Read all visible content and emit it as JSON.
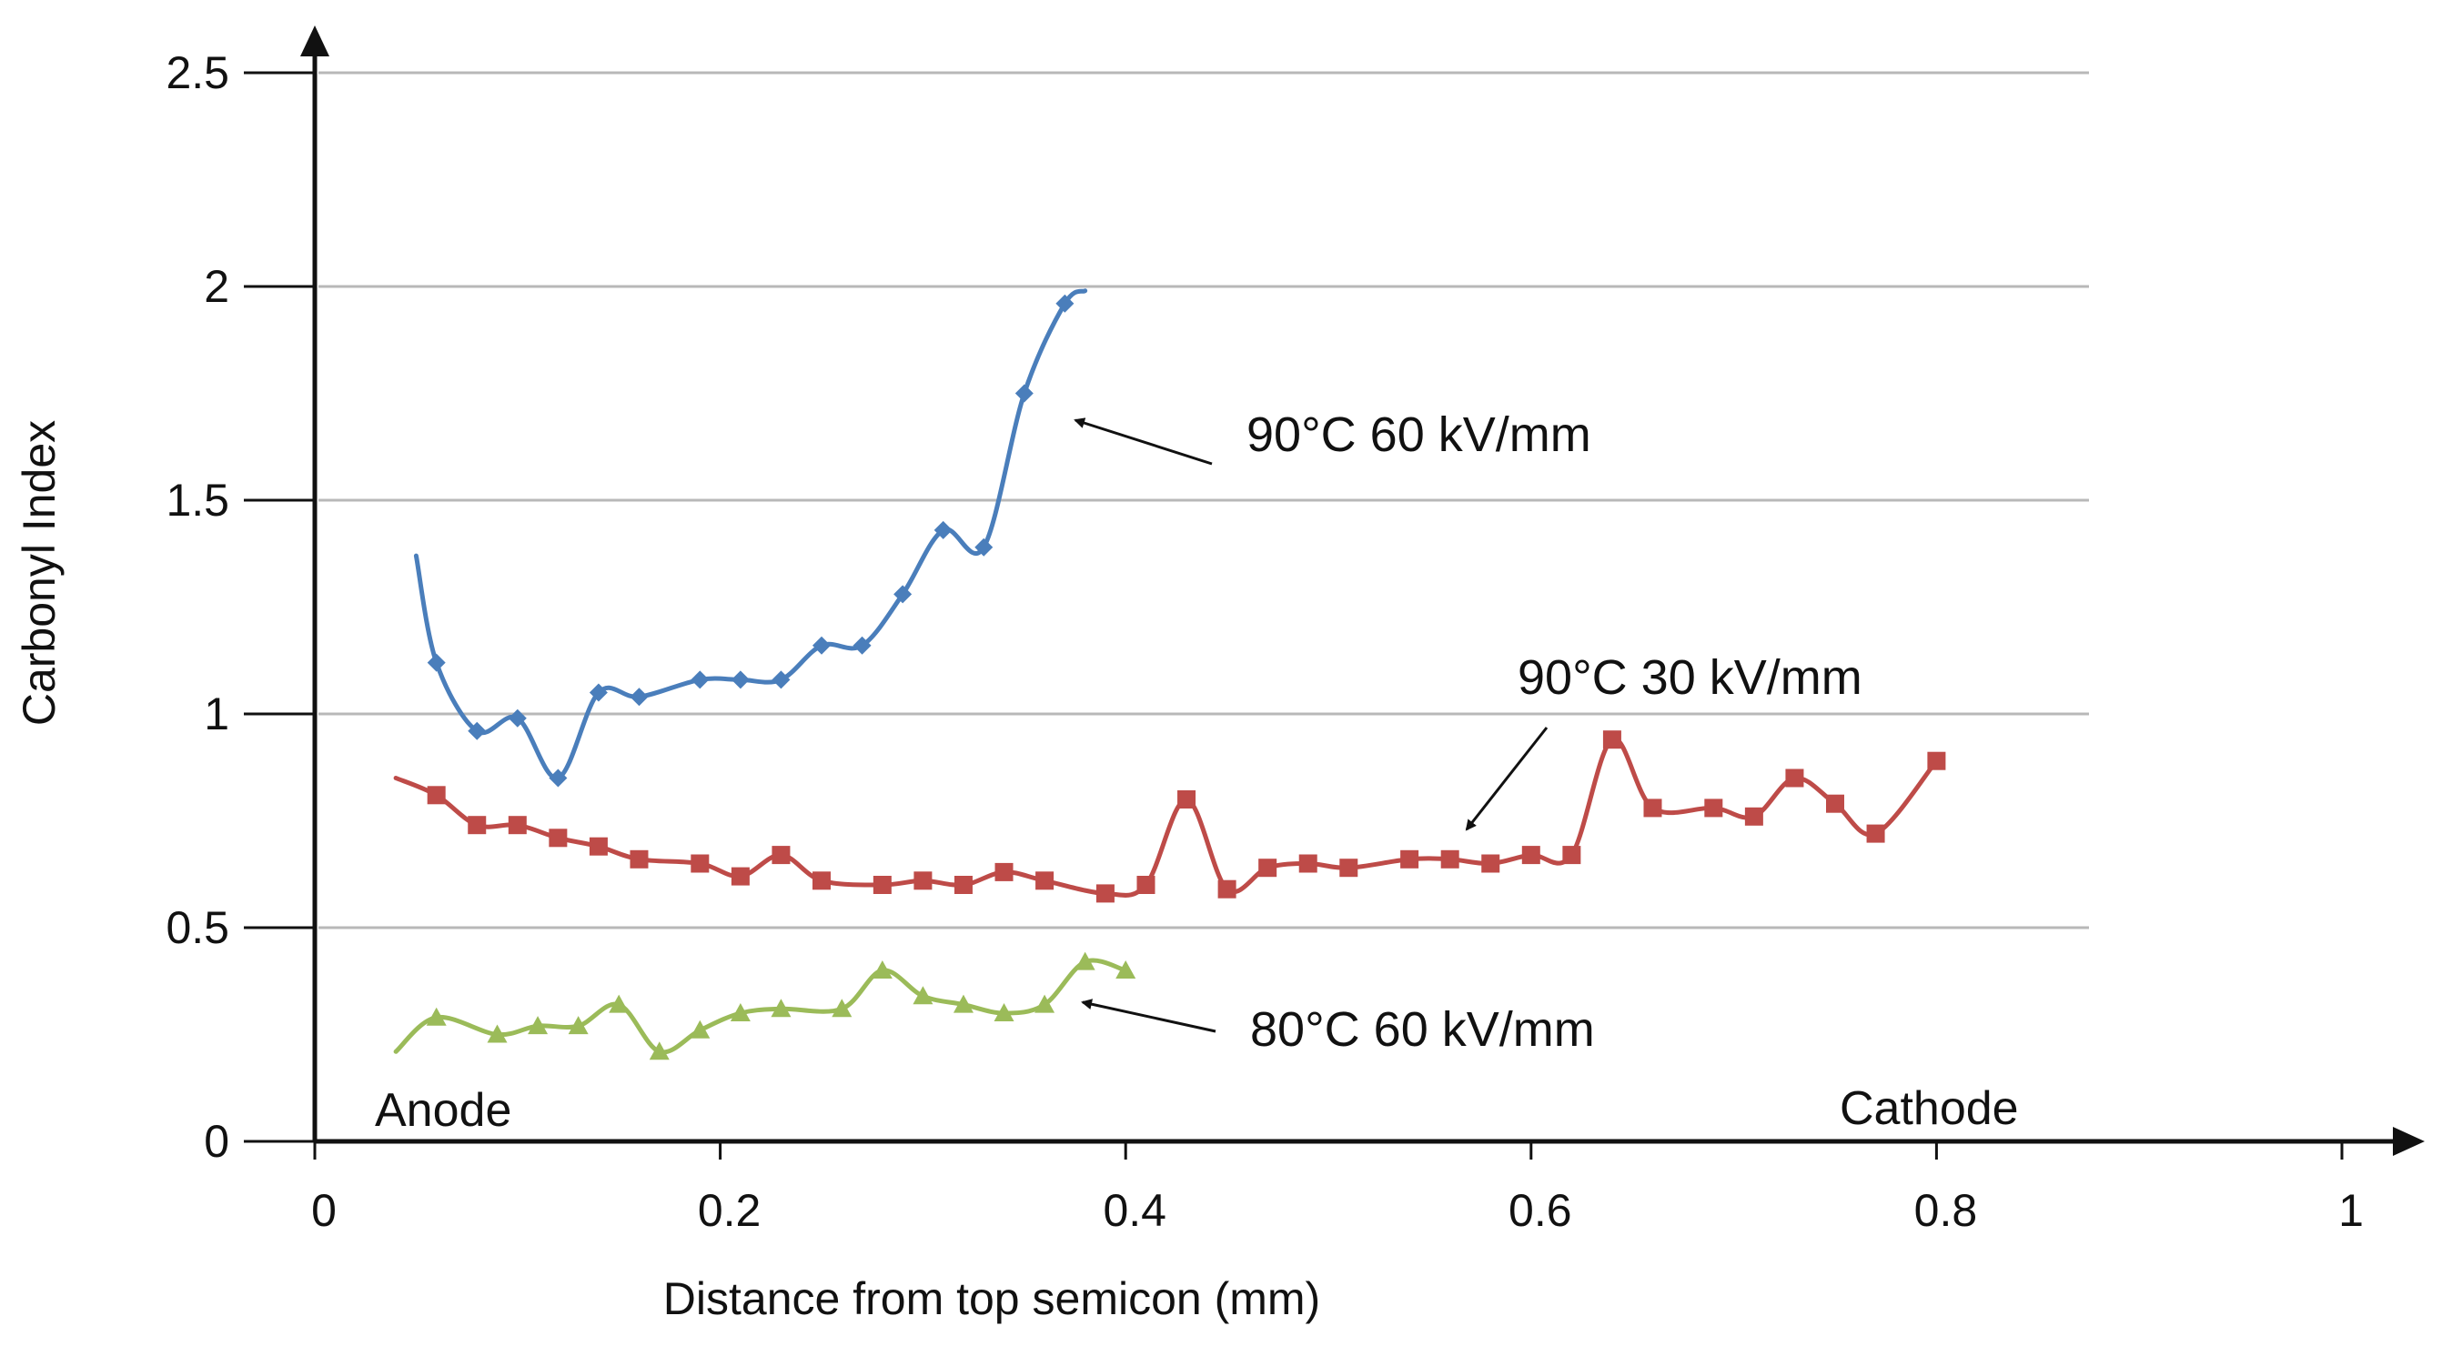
{
  "chart_data": {
    "type": "line",
    "title": "",
    "xlabel": "Distance from top semicon (mm)",
    "ylabel": "Carbonyl Index",
    "xlim": [
      0,
      1
    ],
    "ylim": [
      0,
      2.5
    ],
    "xticks": [
      0,
      0.2,
      0.4,
      0.6,
      0.8,
      1
    ],
    "xtick_labels": [
      "0",
      "0.2",
      "0.4",
      "0.6",
      "0.8",
      "1"
    ],
    "yticks": [
      0,
      0.5,
      1,
      1.5,
      2,
      2.5
    ],
    "ytick_labels": [
      "0",
      "0.5",
      "1",
      "1.5",
      "2",
      "2.5"
    ],
    "grid": true,
    "legend": "none",
    "series": [
      {
        "name": "90°C 60 kV/mm",
        "color": "#4a7ebb",
        "marker": "diamond",
        "x": [
          0.06,
          0.08,
          0.1,
          0.12,
          0.14,
          0.16,
          0.19,
          0.21,
          0.23,
          0.25,
          0.27,
          0.29,
          0.31,
          0.33,
          0.35,
          0.37
        ],
        "y": [
          1.12,
          0.96,
          0.99,
          0.85,
          1.05,
          1.04,
          1.08,
          1.08,
          1.08,
          1.16,
          1.16,
          1.28,
          1.43,
          1.39,
          1.75,
          1.96
        ],
        "curve_start": [
          0.05,
          1.37
        ],
        "curve_end": [
          0.38,
          1.99
        ]
      },
      {
        "name": "90°C 30 kV/mm",
        "color": "#be4b48",
        "marker": "square",
        "x": [
          0.06,
          0.08,
          0.1,
          0.12,
          0.14,
          0.16,
          0.19,
          0.21,
          0.23,
          0.25,
          0.28,
          0.3,
          0.32,
          0.34,
          0.36,
          0.39,
          0.41,
          0.43,
          0.45,
          0.47,
          0.49,
          0.51,
          0.54,
          0.56,
          0.58,
          0.6,
          0.62,
          0.64,
          0.66,
          0.69,
          0.71,
          0.73,
          0.75,
          0.77,
          0.8
        ],
        "y": [
          0.81,
          0.74,
          0.74,
          0.71,
          0.69,
          0.66,
          0.65,
          0.62,
          0.67,
          0.61,
          0.6,
          0.61,
          0.6,
          0.63,
          0.61,
          0.58,
          0.6,
          0.8,
          0.59,
          0.64,
          0.65,
          0.64,
          0.66,
          0.66,
          0.65,
          0.67,
          0.67,
          0.94,
          0.78,
          0.78,
          0.76,
          0.85,
          0.79,
          0.72,
          0.89
        ],
        "curve_start": [
          0.04,
          0.85
        ]
      },
      {
        "name": "80°C 60 kV/mm",
        "color": "#9bbb59",
        "marker": "triangle",
        "x": [
          0.06,
          0.09,
          0.11,
          0.13,
          0.15,
          0.17,
          0.19,
          0.21,
          0.23,
          0.26,
          0.28,
          0.3,
          0.32,
          0.34,
          0.36,
          0.38,
          0.4
        ],
        "y": [
          0.29,
          0.25,
          0.27,
          0.27,
          0.32,
          0.21,
          0.26,
          0.3,
          0.31,
          0.31,
          0.4,
          0.34,
          0.32,
          0.3,
          0.32,
          0.42,
          0.4
        ],
        "curve_start": [
          0.04,
          0.21
        ]
      }
    ],
    "annotations": [
      {
        "text": "90°C  60 kV/mm",
        "series": 0
      },
      {
        "text": "90°C  30 kV/mm",
        "series": 1
      },
      {
        "text": "80°C  60 kV/mm",
        "series": 2
      },
      {
        "text": "Anode",
        "side": "left"
      },
      {
        "text": "Cathode",
        "side": "right"
      }
    ]
  }
}
